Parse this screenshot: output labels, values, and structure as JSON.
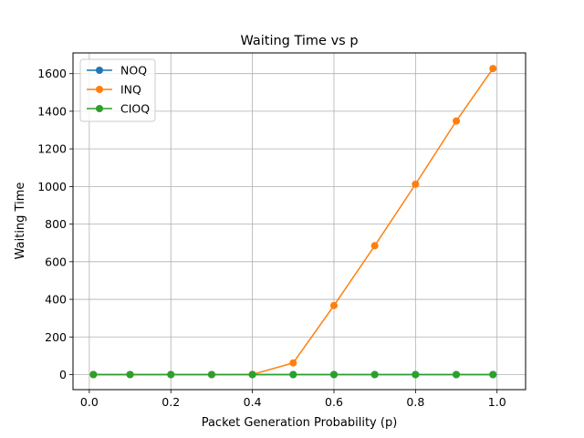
{
  "chart_data": {
    "type": "line",
    "title": "Waiting Time vs p",
    "xlabel": "Packet Generation Probability (p)",
    "ylabel": "Waiting Time",
    "xlim": [
      -0.04,
      1.07
    ],
    "ylim": [
      -80,
      1710
    ],
    "xticks": [
      0.0,
      0.2,
      0.4,
      0.6,
      0.8,
      1.0
    ],
    "xtick_labels": [
      "0.0",
      "0.2",
      "0.4",
      "0.6",
      "0.8",
      "1.0"
    ],
    "yticks": [
      0,
      200,
      400,
      600,
      800,
      1000,
      1200,
      1400,
      1600
    ],
    "ytick_labels": [
      "0",
      "200",
      "400",
      "600",
      "800",
      "1000",
      "1200",
      "1400",
      "1600"
    ],
    "grid": true,
    "legend_position": "top-left",
    "x": [
      0.01,
      0.1,
      0.2,
      0.3,
      0.4,
      0.5,
      0.6,
      0.7,
      0.8,
      0.9,
      0.99
    ],
    "series": [
      {
        "name": "NOQ",
        "color": "#1f77b4",
        "values": [
          0,
          0,
          0,
          0,
          0,
          0,
          0,
          0,
          0,
          0,
          0
        ]
      },
      {
        "name": "INQ",
        "color": "#ff7f0e",
        "values": [
          0,
          0,
          0,
          0,
          1,
          62,
          367,
          685,
          1012,
          1348,
          1627
        ]
      },
      {
        "name": "CIOQ",
        "color": "#2ca02c",
        "values": [
          0,
          0,
          0,
          0,
          0,
          0,
          0,
          0,
          0,
          0,
          0
        ]
      }
    ]
  }
}
